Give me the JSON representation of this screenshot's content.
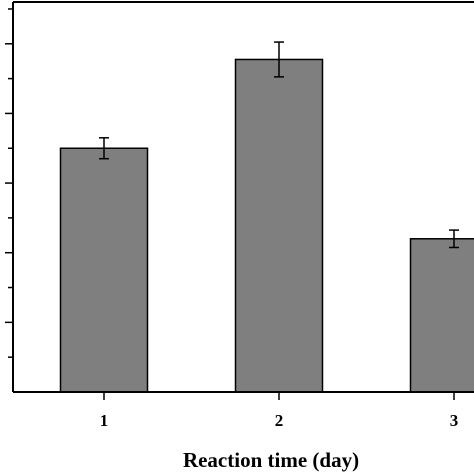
{
  "chart_data": {
    "type": "bar",
    "categories": [
      "1",
      "2",
      "3"
    ],
    "values": [
      7.0,
      9.55,
      4.4
    ],
    "error": [
      0.3,
      0.5,
      0.25
    ],
    "xlabel": "Reaction time (day)",
    "ylabel": "",
    "ylim": [
      0,
      11.2
    ],
    "y_major_tick_step": 2,
    "y_minor_tick_step": 1,
    "grid": false,
    "legend": "none",
    "bar_color": "#7f7f7f",
    "edge_color": "#000000"
  }
}
